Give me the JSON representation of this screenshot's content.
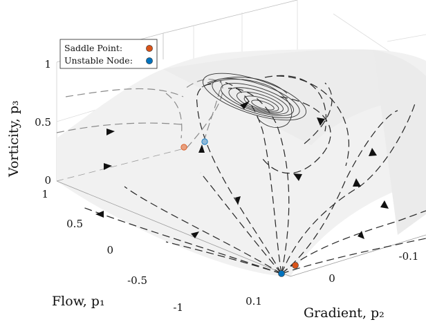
{
  "chart_data": {
    "type": "3d-surface",
    "title": "",
    "xlabel": "Flow, p₁",
    "ylabel": "Gradient, p₂",
    "zlabel": "Vorticity, p₃",
    "x_ticks": [
      "1",
      "0.5",
      "0",
      "-0.5",
      "-1"
    ],
    "y_ticks": [
      "0.1",
      "0",
      "-0.1"
    ],
    "z_ticks": [
      "1",
      "0.5",
      "0"
    ],
    "surface": "p₃ = 1 − p₁² (parabolic cylinder, light gray)",
    "legend": [
      {
        "label": "Saddle Point:",
        "color": "#d95319",
        "marker": "circle"
      },
      {
        "label": "Unstable Node:",
        "color": "#0072bd",
        "marker": "circle"
      }
    ],
    "fixed_points": [
      {
        "type": "Saddle Point",
        "p1": 0,
        "p2": 0,
        "p3": 1,
        "color": "#d95319"
      },
      {
        "type": "Unstable Node",
        "p1": 0,
        "p2": 0.05,
        "p3": 1,
        "color": "#0072bd"
      },
      {
        "type": "Saddle Point",
        "p1": -1,
        "p2": -0.02,
        "p3": 0,
        "color": "#d95319"
      },
      {
        "type": "Unstable Node",
        "p1": -1,
        "p2": 0.02,
        "p3": 0,
        "color": "#0072bd"
      }
    ],
    "trajectories": "dashed black flow lines on the surface, spiraling into a limit cycle near the top",
    "grid": true,
    "legend_position": "top-left"
  }
}
